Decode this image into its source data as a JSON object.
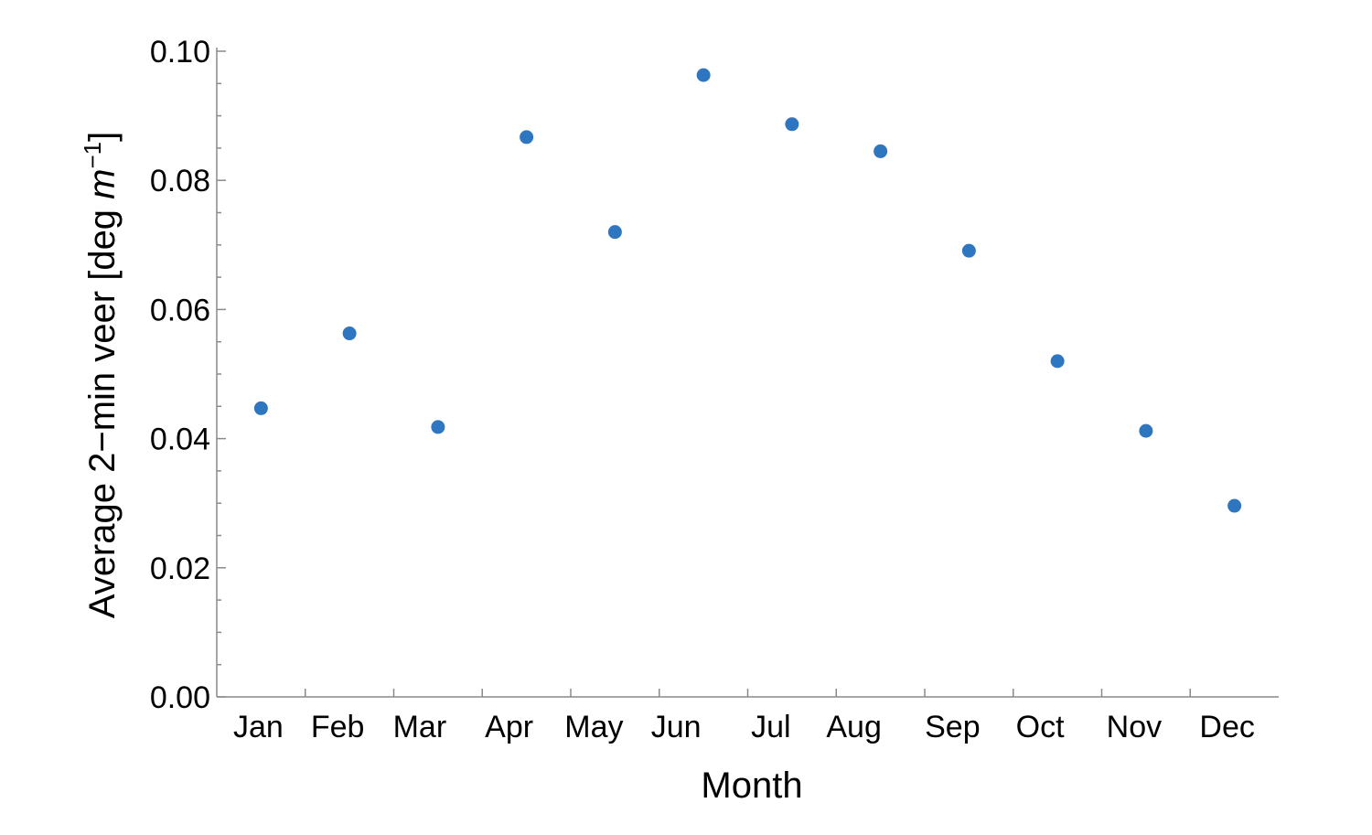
{
  "chart_data": {
    "type": "scatter",
    "title": "",
    "xlabel": "Month",
    "ylabel": {
      "prefix": "Average 2−min veer [deg ",
      "unit": "m",
      "exponent": "−1",
      "suffix": "]"
    },
    "categories": [
      "Jan",
      "Feb",
      "Mar",
      "Apr",
      "May",
      "Jun",
      "Jul",
      "Aug",
      "Sep",
      "Oct",
      "Nov",
      "Dec"
    ],
    "series": [
      {
        "values": [
          0.0447,
          0.0563,
          0.0418,
          0.0867,
          0.072,
          0.0963,
          0.0887,
          0.0845,
          0.0691,
          0.052,
          0.0412,
          0.0296
        ]
      }
    ],
    "ylim": [
      0,
      0.1
    ],
    "yticks": [
      "0.00",
      "0.02",
      "0.04",
      "0.06",
      "0.08",
      "0.10"
    ],
    "grid": false,
    "legend": "none",
    "colors": {
      "point": "#2f76c0",
      "axis": "#8a8a8a"
    }
  }
}
